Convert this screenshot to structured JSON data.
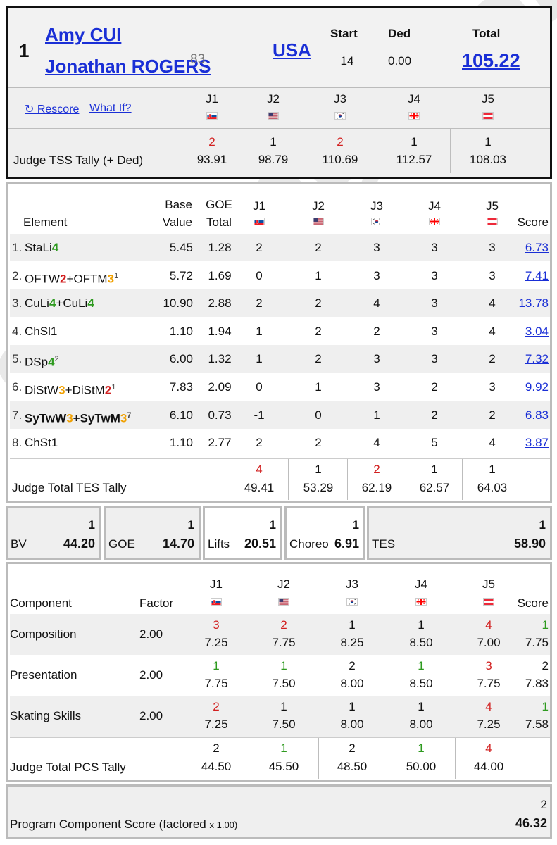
{
  "colors": {
    "link": "#1a2fd6",
    "red": "#d22020",
    "green": "#2e9a1f",
    "orange": "#f0a000"
  },
  "header": {
    "rank": "1",
    "skater1": "Amy CUI",
    "skater2": "Jonathan ROGERS",
    "age": "83",
    "country": "USA",
    "start_label": "Start",
    "start": "14",
    "ded_label": "Ded",
    "ded": "0.00",
    "total_label": "Total",
    "total": "105.22",
    "rescore": "↻ Rescore",
    "whatif": "What If?",
    "tally_label": "Judge TSS Tally (+ Ded)",
    "judges": [
      {
        "label": "J1",
        "flag": "slovakia-flag",
        "rank": "2",
        "rank_color": "red",
        "score": "93.91"
      },
      {
        "label": "J2",
        "flag": "usa-flag",
        "rank": "1",
        "rank_color": "black",
        "score": "98.79"
      },
      {
        "label": "J3",
        "flag": "korea-flag",
        "rank": "2",
        "rank_color": "red",
        "score": "110.69"
      },
      {
        "label": "J4",
        "flag": "georgia-flag",
        "rank": "1",
        "rank_color": "black",
        "score": "112.57"
      },
      {
        "label": "J5",
        "flag": "austria-flag",
        "rank": "1",
        "rank_color": "black",
        "score": "108.03"
      }
    ]
  },
  "elements": {
    "headers": {
      "element": "Element",
      "base1": "Base",
      "base2": "Value",
      "goe1": "GOE",
      "goe2": "Total",
      "judges": [
        "J1",
        "J2",
        "J3",
        "J4",
        "J5"
      ],
      "score": "Score"
    },
    "rows": [
      {
        "num": "1.",
        "parts": [
          {
            "t": "StaLi",
            "c": ""
          },
          {
            "t": "4",
            "c": "green"
          }
        ],
        "sup": "",
        "bold": false,
        "base": "5.45",
        "goe": "1.28",
        "j": [
          "2",
          "2",
          "3",
          "3",
          "3"
        ],
        "score": "6.73"
      },
      {
        "num": "2.",
        "parts": [
          {
            "t": "OFTW",
            "c": ""
          },
          {
            "t": "2",
            "c": "red"
          },
          {
            "t": "+OFTM",
            "c": ""
          },
          {
            "t": "3",
            "c": "orange"
          }
        ],
        "sup": "1",
        "bold": false,
        "base": "5.72",
        "goe": "1.69",
        "j": [
          "0",
          "1",
          "3",
          "3",
          "3"
        ],
        "score": "7.41"
      },
      {
        "num": "3.",
        "parts": [
          {
            "t": "CuLi",
            "c": ""
          },
          {
            "t": "4",
            "c": "green"
          },
          {
            "t": "+CuLi",
            "c": ""
          },
          {
            "t": "4",
            "c": "green"
          }
        ],
        "sup": "",
        "bold": false,
        "base": "10.90",
        "goe": "2.88",
        "j": [
          "2",
          "2",
          "4",
          "3",
          "4"
        ],
        "score": "13.78"
      },
      {
        "num": "4.",
        "parts": [
          {
            "t": "ChSl1",
            "c": ""
          }
        ],
        "sup": "",
        "bold": false,
        "base": "1.10",
        "goe": "1.94",
        "j": [
          "1",
          "2",
          "2",
          "3",
          "4"
        ],
        "score": "3.04"
      },
      {
        "num": "5.",
        "parts": [
          {
            "t": "DSp",
            "c": ""
          },
          {
            "t": "4",
            "c": "green"
          }
        ],
        "sup": "2",
        "bold": false,
        "base": "6.00",
        "goe": "1.32",
        "j": [
          "1",
          "2",
          "3",
          "3",
          "2"
        ],
        "score": "7.32"
      },
      {
        "num": "6.",
        "parts": [
          {
            "t": "DiStW",
            "c": ""
          },
          {
            "t": "3",
            "c": "orange"
          },
          {
            "t": "+DiStM",
            "c": ""
          },
          {
            "t": "2",
            "c": "red"
          }
        ],
        "sup": "1",
        "bold": false,
        "base": "7.83",
        "goe": "2.09",
        "j": [
          "0",
          "1",
          "3",
          "2",
          "3"
        ],
        "score": "9.92"
      },
      {
        "num": "7.",
        "parts": [
          {
            "t": "SyTwW",
            "c": ""
          },
          {
            "t": "3",
            "c": "orange"
          },
          {
            "t": "+SyTwM",
            "c": ""
          },
          {
            "t": "3",
            "c": "orange"
          }
        ],
        "sup": "7",
        "bold": true,
        "base": "6.10",
        "goe": "0.73",
        "j": [
          "-1",
          "0",
          "1",
          "2",
          "2"
        ],
        "score": "6.83"
      },
      {
        "num": "8.",
        "parts": [
          {
            "t": "ChSt1",
            "c": ""
          }
        ],
        "sup": "",
        "bold": false,
        "base": "1.10",
        "goe": "2.77",
        "j": [
          "2",
          "2",
          "4",
          "5",
          "4"
        ],
        "score": "3.87"
      }
    ],
    "tally_label": "Judge Total TES Tally",
    "tally": [
      {
        "rank": "4",
        "rank_color": "red",
        "score": "49.41"
      },
      {
        "rank": "1",
        "rank_color": "black",
        "score": "53.29"
      },
      {
        "rank": "2",
        "rank_color": "red",
        "score": "62.19"
      },
      {
        "rank": "1",
        "rank_color": "black",
        "score": "62.57"
      },
      {
        "rank": "1",
        "rank_color": "black",
        "score": "64.03"
      }
    ]
  },
  "summary": [
    {
      "label": "BV",
      "rank": "1",
      "value": "44.20"
    },
    {
      "label": "GOE",
      "rank": "1",
      "value": "14.70"
    },
    {
      "label": "Lifts",
      "rank": "1",
      "value": "20.51"
    },
    {
      "label": "Choreo",
      "rank": "1",
      "value": "6.91"
    },
    {
      "label": "TES",
      "rank": "1",
      "value": "58.90"
    }
  ],
  "components": {
    "headers": {
      "component": "Component",
      "factor": "Factor",
      "judges": [
        "J1",
        "J2",
        "J3",
        "J4",
        "J5"
      ],
      "score": "Score"
    },
    "rows": [
      {
        "name": "Composition",
        "factor": "2.00",
        "j": [
          {
            "rank": "3",
            "c": "red",
            "v": "7.25"
          },
          {
            "rank": "2",
            "c": "red",
            "v": "7.75"
          },
          {
            "rank": "1",
            "c": "black",
            "v": "8.25"
          },
          {
            "rank": "1",
            "c": "black",
            "v": "8.50"
          },
          {
            "rank": "4",
            "c": "red",
            "v": "7.00"
          }
        ],
        "score_rank": "1",
        "score_rank_color": "green",
        "score": "7.75"
      },
      {
        "name": "Presentation",
        "factor": "2.00",
        "j": [
          {
            "rank": "1",
            "c": "green",
            "v": "7.75"
          },
          {
            "rank": "1",
            "c": "green",
            "v": "7.50"
          },
          {
            "rank": "2",
            "c": "black",
            "v": "8.00"
          },
          {
            "rank": "1",
            "c": "green",
            "v": "8.50"
          },
          {
            "rank": "3",
            "c": "red",
            "v": "7.75"
          }
        ],
        "score_rank": "2",
        "score_rank_color": "black",
        "score": "7.83"
      },
      {
        "name": "Skating Skills",
        "factor": "2.00",
        "j": [
          {
            "rank": "2",
            "c": "red",
            "v": "7.25"
          },
          {
            "rank": "1",
            "c": "black",
            "v": "7.50"
          },
          {
            "rank": "1",
            "c": "black",
            "v": "8.00"
          },
          {
            "rank": "1",
            "c": "black",
            "v": "8.00"
          },
          {
            "rank": "4",
            "c": "red",
            "v": "7.25"
          }
        ],
        "score_rank": "1",
        "score_rank_color": "green",
        "score": "7.58"
      }
    ],
    "tally_label": "Judge Total PCS Tally",
    "tally": [
      {
        "rank": "2",
        "rank_color": "black",
        "score": "44.50"
      },
      {
        "rank": "1",
        "rank_color": "green",
        "score": "45.50"
      },
      {
        "rank": "2",
        "rank_color": "black",
        "score": "48.50"
      },
      {
        "rank": "1",
        "rank_color": "green",
        "score": "50.00"
      },
      {
        "rank": "4",
        "rank_color": "red",
        "score": "44.00"
      }
    ]
  },
  "pcs": {
    "label": "Program Component Score (factored",
    "factor_note": "x 1.00)",
    "rank": "2",
    "value": "46.32"
  },
  "watermark": "SkatingScores.com"
}
